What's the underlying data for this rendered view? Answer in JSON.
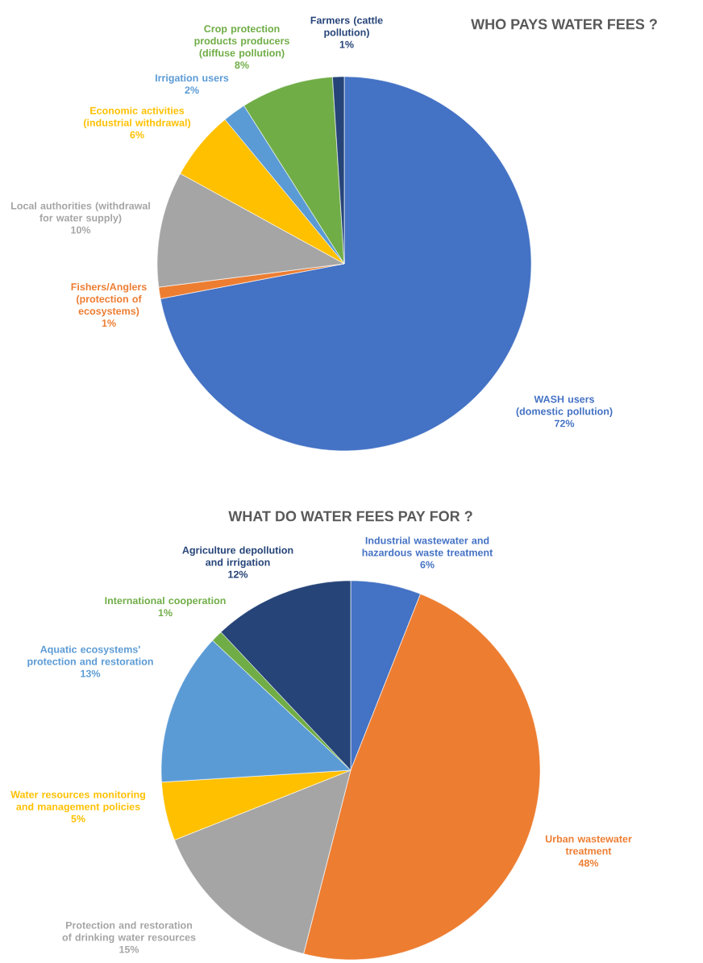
{
  "chart_data": [
    {
      "type": "pie",
      "title": "WHO PAYS WATER FEES ?",
      "categories": [
        "WASH users (domestic pollution)",
        "Fishers/Anglers (protection of ecosystems)",
        "Local authorities (withdrawal for water supply)",
        "Economic activities (industrial withdrawal)",
        "Irrigation users",
        "Crop protection products producers (diffuse pollution)",
        "Farmers (cattle pollution)"
      ],
      "values": [
        72,
        1,
        10,
        6,
        2,
        8,
        1
      ],
      "value_labels": [
        "72%",
        "1%",
        "10%",
        "6%",
        "2%",
        "8%",
        "1%"
      ],
      "colors": [
        "#4472c4",
        "#ed7d31",
        "#a5a5a5",
        "#ffc000",
        "#5b9bd5",
        "#70ad47",
        "#264478"
      ]
    },
    {
      "type": "pie",
      "title": "WHAT DO WATER FEES PAY FOR ?",
      "categories": [
        "Industrial wastewater and hazardous waste treatment",
        "Urban wastewater treatment",
        "Protection and restoration of drinking water resources",
        "Water resources monitoring and management policies",
        "Aquatic ecosystems' protection and restoration",
        "International cooperation",
        "Agriculture depollution and irrigation"
      ],
      "values": [
        6,
        48,
        15,
        5,
        13,
        1,
        12
      ],
      "value_labels": [
        "6%",
        "48%",
        "15%",
        "5%",
        "13%",
        "1%",
        "12%"
      ],
      "colors": [
        "#4472c4",
        "#ed7d31",
        "#a5a5a5",
        "#ffc000",
        "#5b9bd5",
        "#70ad47",
        "#264478"
      ]
    }
  ]
}
